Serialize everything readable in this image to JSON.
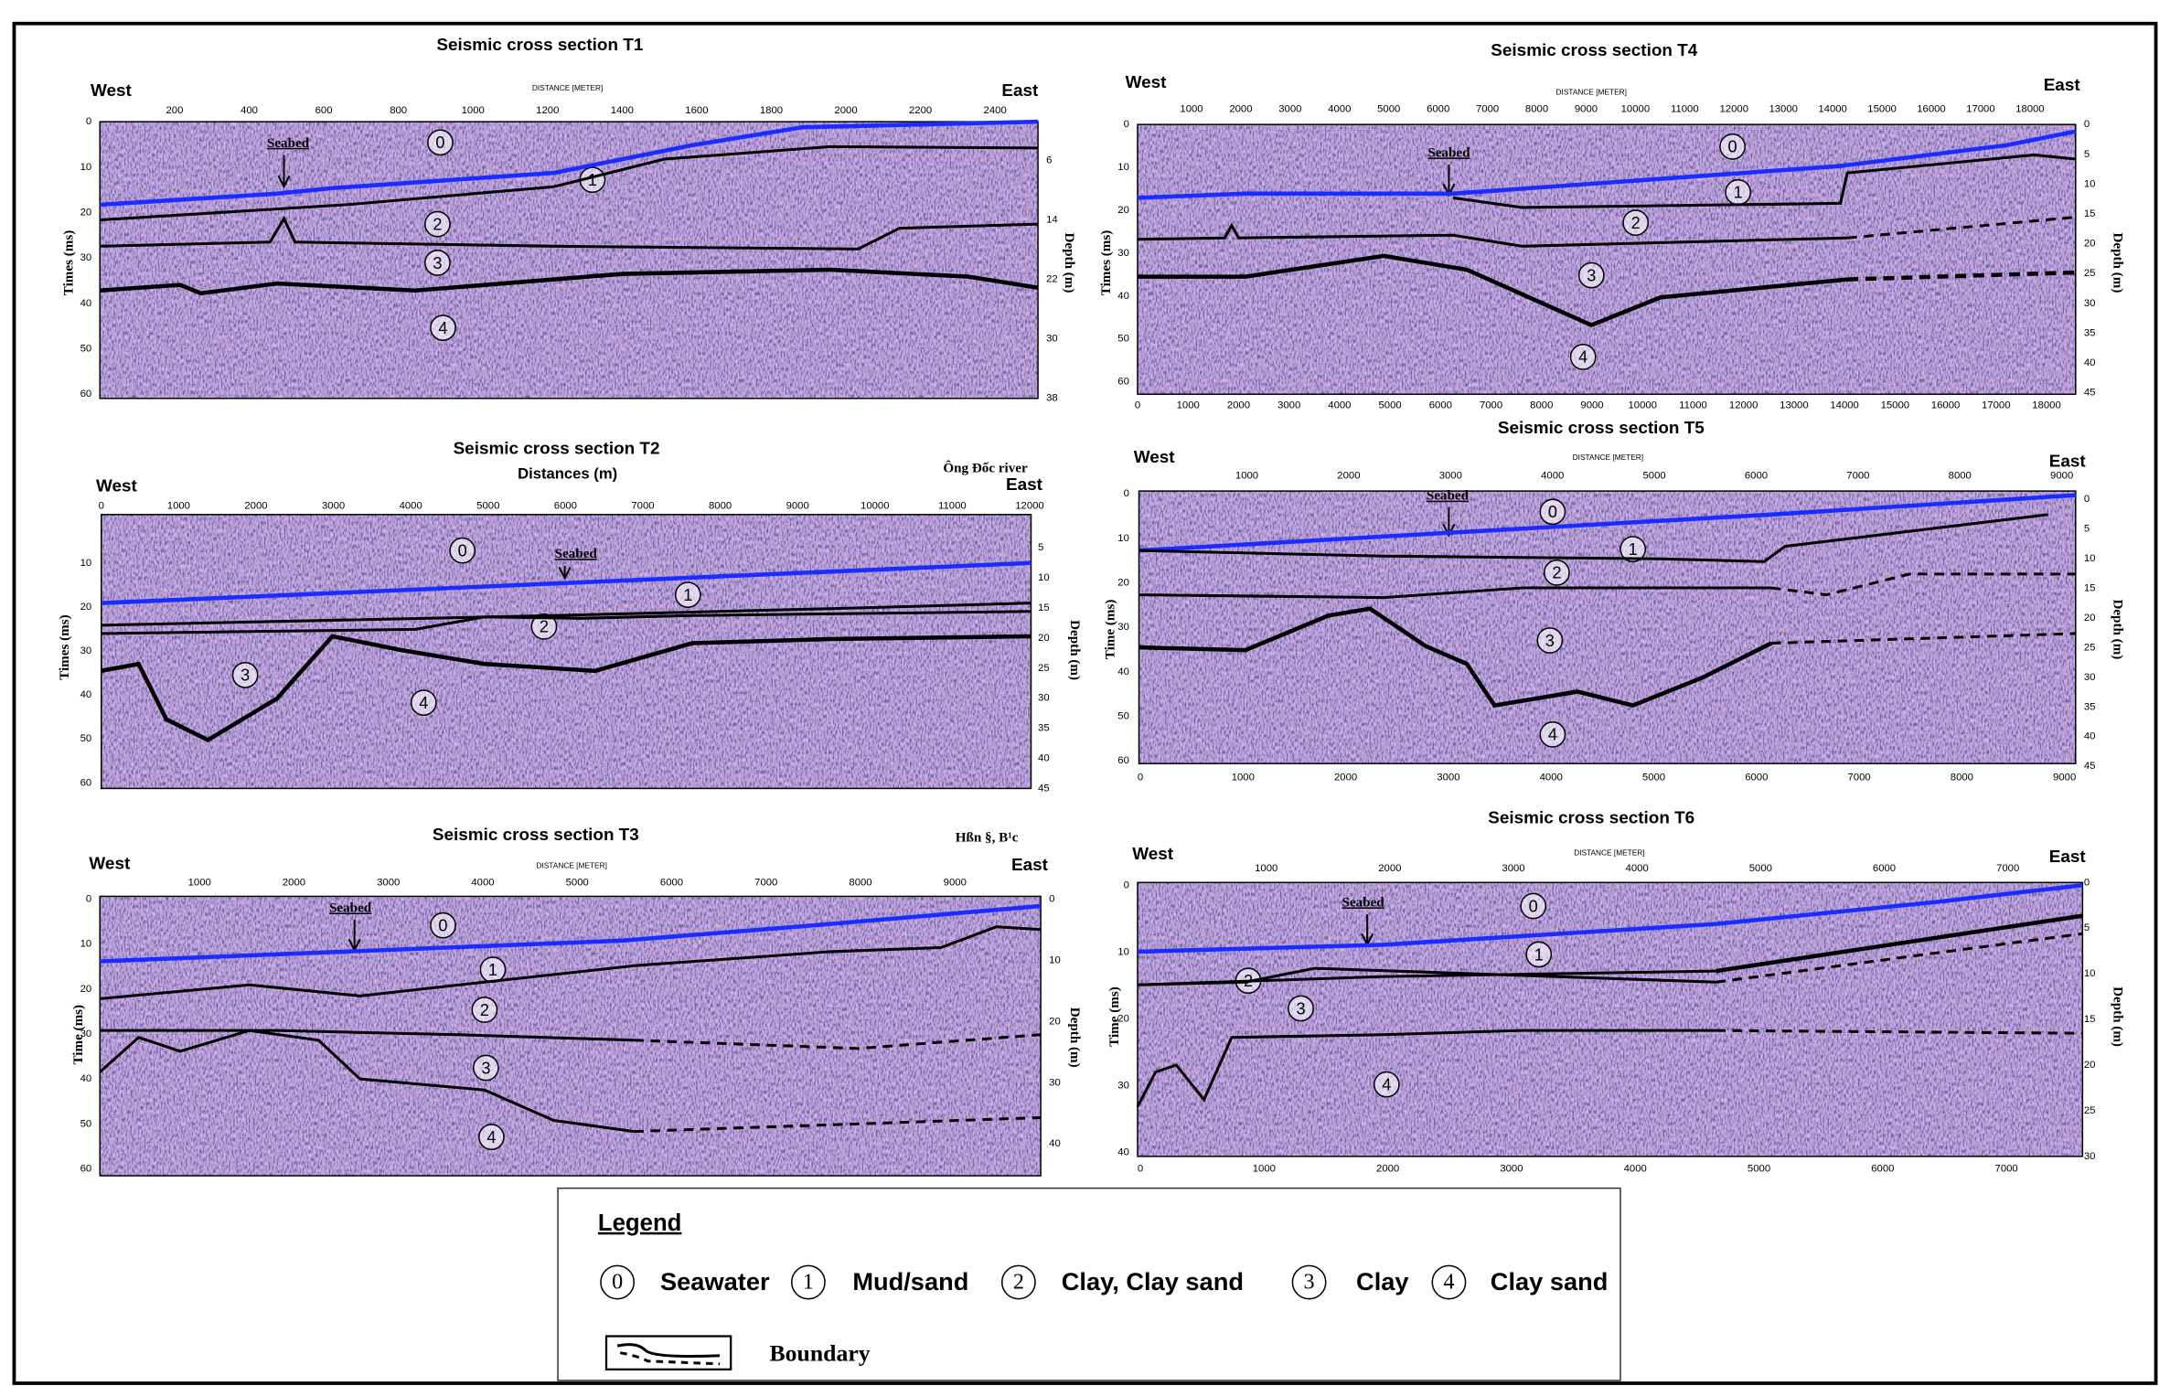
{
  "panels": [
    {
      "title": "Seismic cross section T1",
      "west": "West",
      "east": "East",
      "distance_label": "DISTANCE [METER]",
      "top_ticks": [
        200,
        400,
        600,
        800,
        1000,
        1200,
        1400,
        1600,
        1800,
        2000,
        2200,
        2400
      ],
      "left_ticks": [
        0,
        10,
        20,
        30,
        40,
        50,
        60
      ],
      "right_ticks": [
        6,
        14,
        22,
        30,
        38
      ],
      "y_label": "Times (ms)",
      "y2_label": "Depth (m)",
      "seabed": "Seabed",
      "layers": [
        0,
        1,
        2,
        3,
        4
      ]
    },
    {
      "title": "Seismic cross section T2",
      "subtitle": "Distances (m)",
      "note": "Ông Đốc river",
      "west": "West",
      "east": "East",
      "top_ticks": [
        0,
        1000,
        2000,
        3000,
        4000,
        5000,
        6000,
        7000,
        8000,
        9000,
        10000,
        11000,
        12000
      ],
      "left_ticks": [
        10,
        20,
        30,
        40,
        50,
        60
      ],
      "right_ticks": [
        5,
        10,
        15,
        20,
        25,
        30,
        35,
        40,
        45
      ],
      "y_label": "Times (ms)",
      "y2_label": "Depth (m)",
      "seabed": "Seabed",
      "layers": [
        0,
        1,
        2,
        3,
        4
      ]
    },
    {
      "title": "Seismic cross section T3",
      "note": "Hßn §, B¹c",
      "west": "West",
      "east": "East",
      "distance_label": "DISTANCE [METER]",
      "top_ticks": [
        1000,
        2000,
        3000,
        4000,
        5000,
        6000,
        7000,
        8000,
        9000
      ],
      "left_ticks": [
        0,
        10,
        20,
        30,
        40,
        50,
        60
      ],
      "right_ticks": [
        0,
        10,
        20,
        30,
        40
      ],
      "y_label": "Time (ms)",
      "y2_label": "Depth (m)",
      "seabed": "Seabed",
      "layers": [
        0,
        1,
        2,
        3,
        4
      ]
    },
    {
      "title": "Seismic cross section T4",
      "west": "West",
      "east": "East",
      "distance_label": "DISTANCE [METER]",
      "top_ticks": [
        1000,
        2000,
        3000,
        4000,
        5000,
        6000,
        7000,
        8000,
        9000,
        10000,
        11000,
        12000,
        13000,
        14000,
        15000,
        16000,
        17000,
        18000
      ],
      "bottom_ticks": [
        0,
        1000,
        2000,
        3000,
        4000,
        5000,
        6000,
        7000,
        8000,
        9000,
        10000,
        11000,
        12000,
        13000,
        14000,
        15000,
        16000,
        17000,
        18000
      ],
      "left_ticks": [
        0,
        10,
        20,
        30,
        40,
        50,
        60
      ],
      "right_ticks": [
        0,
        5,
        10,
        15,
        20,
        25,
        30,
        35,
        40,
        45
      ],
      "y_label": "Times (ms)",
      "y2_label": "Depth (m)",
      "seabed": "Seabed",
      "layers": [
        0,
        1,
        2,
        3,
        4
      ]
    },
    {
      "title": "Seismic cross section T5",
      "west": "West",
      "east": "East",
      "distance_label": "DISTANCE [METER]",
      "top_ticks": [
        1000,
        2000,
        3000,
        4000,
        5000,
        6000,
        7000,
        8000,
        9000
      ],
      "bottom_ticks": [
        0,
        1000,
        2000,
        3000,
        4000,
        5000,
        6000,
        7000,
        8000,
        9000
      ],
      "left_ticks": [
        0,
        10,
        20,
        30,
        40,
        50,
        60
      ],
      "right_ticks": [
        0,
        5,
        10,
        15,
        20,
        25,
        30,
        35,
        40,
        45
      ],
      "y_label": "Time (ms)",
      "y2_label": "Depth (m)",
      "seabed": "Seabed",
      "layers": [
        0,
        1,
        2,
        3,
        4
      ]
    },
    {
      "title": "Seismic cross section T6",
      "west": "West",
      "east": "East",
      "distance_label": "DISTANCE [METER]",
      "top_ticks": [
        1000,
        2000,
        3000,
        4000,
        5000,
        6000,
        7000
      ],
      "bottom_ticks": [
        0,
        1000,
        2000,
        3000,
        4000,
        5000,
        6000,
        7000
      ],
      "left_ticks": [
        0,
        10,
        20,
        30,
        40
      ],
      "right_ticks": [
        0,
        5,
        10,
        15,
        20,
        25,
        30
      ],
      "y_label": "Time (ms)",
      "y2_label": "Depth (m)",
      "seabed": "Seabed",
      "layers": [
        0,
        1,
        2,
        3,
        4
      ]
    }
  ],
  "legend": {
    "title": "Legend",
    "items": [
      {
        "symbol": 0,
        "label": "Seawater"
      },
      {
        "symbol": 1,
        "label": "Mud/sand"
      },
      {
        "symbol": 2,
        "label": "Clay, Clay sand"
      },
      {
        "symbol": 3,
        "label": "Clay"
      },
      {
        "symbol": 4,
        "label": "Clay sand"
      }
    ],
    "boundary": "Boundary"
  }
}
